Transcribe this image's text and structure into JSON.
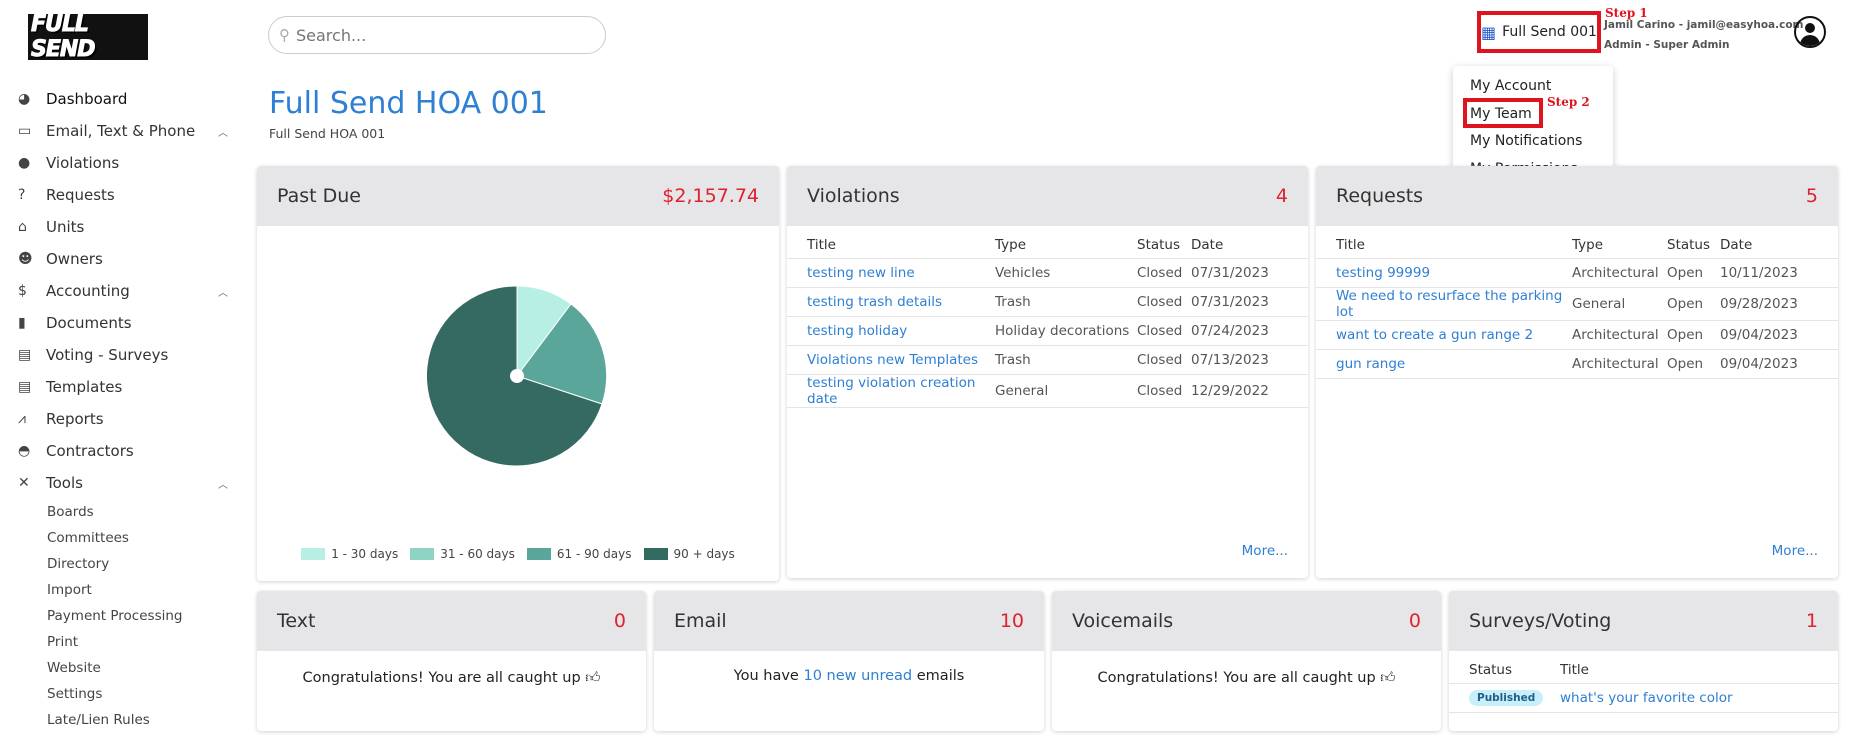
{
  "logo": {
    "text": "FULL SEND"
  },
  "sidebar": {
    "items": [
      {
        "label": "Dashboard",
        "icon": "dashboard-icon"
      },
      {
        "label": "Email, Text & Phone",
        "icon": "inbox-icon"
      },
      {
        "label": "Violations",
        "icon": "exclamation-icon"
      },
      {
        "label": "Requests",
        "icon": "question-icon"
      },
      {
        "label": "Units",
        "icon": "home-icon"
      },
      {
        "label": "Owners",
        "icon": "users-icon"
      },
      {
        "label": "Accounting",
        "icon": "dollar-icon"
      },
      {
        "label": "Documents",
        "icon": "file-icon"
      },
      {
        "label": "Voting - Surveys",
        "icon": "ballot-icon"
      },
      {
        "label": "Templates",
        "icon": "template-icon"
      },
      {
        "label": "Reports",
        "icon": "chart-icon"
      },
      {
        "label": "Contractors",
        "icon": "hardhat-icon"
      },
      {
        "label": "Tools",
        "icon": "tools-icon"
      }
    ],
    "tools_sub": [
      "Boards",
      "Committees",
      "Directory",
      "Import",
      "Payment Processing",
      "Print",
      "Website",
      "Settings",
      "Late/Lien Rules"
    ]
  },
  "search": {
    "placeholder": "Search..."
  },
  "header": {
    "title": "Full Send HOA 001",
    "subtitle": "Full Send HOA 001",
    "hoa_button": "Full Send 001",
    "user_line1": "Jamil Carino - jamil@easyhoa.com",
    "user_line2": "Admin - Super Admin",
    "step1": "Step 1",
    "step2": "Step 2"
  },
  "menu": {
    "items": [
      "My Account",
      "My Team",
      "My Notifications",
      "My Permissions"
    ]
  },
  "past_due": {
    "title": "Past Due",
    "amount": "$2,157.74",
    "legend": [
      "1 - 30 days",
      "31 - 60 days",
      "61 - 90 days",
      "90 + days"
    ],
    "colors": [
      "#b8efe5",
      "#8fd3c4",
      "#5aa69a",
      "#356a62"
    ]
  },
  "violations": {
    "title": "Violations",
    "count": "4",
    "columns": [
      "Title",
      "Type",
      "Status",
      "Date"
    ],
    "rows": [
      [
        "testing new line",
        "Vehicles",
        "Closed",
        "07/31/2023"
      ],
      [
        "testing trash details",
        "Trash",
        "Closed",
        "07/31/2023"
      ],
      [
        "testing holiday",
        "Holiday decorations",
        "Closed",
        "07/24/2023"
      ],
      [
        "Violations new Templates",
        "Trash",
        "Closed",
        "07/13/2023"
      ],
      [
        "testing violation creation date",
        "General",
        "Closed",
        "12/29/2022"
      ]
    ],
    "more": "More..."
  },
  "requests": {
    "title": "Requests",
    "count": "5",
    "columns": [
      "Title",
      "Type",
      "Status",
      "Date"
    ],
    "rows": [
      [
        "testing 99999",
        "Architectural",
        "Open",
        "10/11/2023"
      ],
      [
        "We need to resurface the parking lot",
        "General",
        "Open",
        "09/28/2023"
      ],
      [
        "want to create a gun range 2",
        "Architectural",
        "Open",
        "09/04/2023"
      ],
      [
        "gun range",
        "Architectural",
        "Open",
        "09/04/2023"
      ]
    ],
    "more": "More..."
  },
  "text_card": {
    "title": "Text",
    "count": "0",
    "message": "Congratulations! You are all caught up"
  },
  "email_card": {
    "title": "Email",
    "count": "10",
    "msg_pre": "You have ",
    "msg_link": "10 new unread",
    "msg_post": " emails"
  },
  "voicemails_card": {
    "title": "Voicemails",
    "count": "0",
    "message": "Congratulations! You are all caught up"
  },
  "surveys_card": {
    "title": "Surveys/Voting",
    "count": "1",
    "columns": [
      "Status",
      "Title"
    ],
    "rows": [
      [
        "Published",
        "what's your favorite color"
      ]
    ]
  }
}
